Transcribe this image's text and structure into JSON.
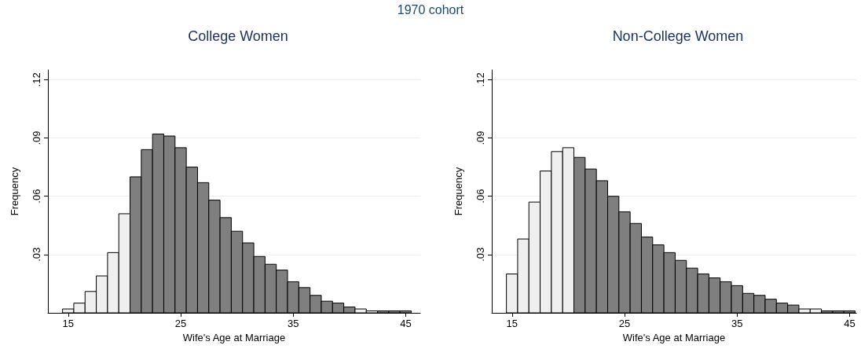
{
  "chart_data": [
    {
      "type": "histogram",
      "title": "College Women",
      "xlabel": "Wife's Age at Marriage",
      "ylabel": "Frequency",
      "annotations": [
        "1970 cohort"
      ],
      "bins": [
        14.5,
        15.5,
        16.5,
        17.5,
        18.5,
        19.5,
        20.5,
        21.5,
        22.5,
        23.5,
        24.5,
        25.5,
        26.5,
        27.5,
        28.5,
        29.5,
        30.5,
        31.5,
        32.5,
        33.5,
        34.5,
        35.5,
        36.5,
        37.5,
        38.5,
        39.5,
        40.5,
        41.5,
        42.5,
        43.5,
        44.5,
        45.5
      ],
      "values": [
        0.002,
        0.005,
        0.011,
        0.019,
        0.031,
        0.051,
        0.07,
        0.084,
        0.092,
        0.091,
        0.085,
        0.075,
        0.067,
        0.058,
        0.049,
        0.042,
        0.036,
        0.029,
        0.025,
        0.022,
        0.016,
        0.013,
        0.009,
        0.006,
        0.005,
        0.003,
        0.002,
        0.001,
        0.001,
        0.001,
        0.001
      ],
      "colors": [
        "#efefef",
        "#efefef",
        "#efefef",
        "#efefef",
        "#efefef",
        "#efefef",
        "#7f7f7f",
        "#7f7f7f",
        "#7f7f7f",
        "#7f7f7f",
        "#7f7f7f",
        "#7f7f7f",
        "#7f7f7f",
        "#7f7f7f",
        "#7f7f7f",
        "#7f7f7f",
        "#7f7f7f",
        "#7f7f7f",
        "#7f7f7f",
        "#7f7f7f",
        "#7f7f7f",
        "#7f7f7f",
        "#7f7f7f",
        "#7f7f7f",
        "#7f7f7f",
        "#7f7f7f",
        "#efefef",
        "#efefef",
        "#7f7f7f",
        "#7f7f7f",
        "#7f7f7f"
      ],
      "xlim": [
        13.2,
        46.3
      ],
      "ylim": [
        0,
        0.125
      ],
      "xticks": [
        15,
        25,
        35,
        45
      ],
      "yticks": [
        {
          "value": 0.03,
          "label": ".03"
        },
        {
          "value": 0.06,
          "label": ".06"
        },
        {
          "value": 0.09,
          "label": ".09"
        },
        {
          "value": 0.12,
          "label": ".12"
        }
      ],
      "grid": "y"
    },
    {
      "type": "histogram",
      "title": "Non-College Women",
      "xlabel": "Wife's Age at Marriage",
      "ylabel": "Frequency",
      "bins": [
        14.5,
        15.5,
        16.5,
        17.5,
        18.5,
        19.5,
        20.5,
        21.5,
        22.5,
        23.5,
        24.5,
        25.5,
        26.5,
        27.5,
        28.5,
        29.5,
        30.5,
        31.5,
        32.5,
        33.5,
        34.5,
        35.5,
        36.5,
        37.5,
        38.5,
        39.5,
        40.5,
        41.5,
        42.5,
        43.5,
        44.5,
        45.5
      ],
      "values": [
        0.02,
        0.038,
        0.057,
        0.073,
        0.083,
        0.085,
        0.08,
        0.074,
        0.068,
        0.06,
        0.052,
        0.046,
        0.039,
        0.035,
        0.031,
        0.027,
        0.023,
        0.02,
        0.018,
        0.016,
        0.014,
        0.01,
        0.009,
        0.007,
        0.005,
        0.004,
        0.002,
        0.002,
        0.001,
        0.001,
        0.001
      ],
      "colors": [
        "#efefef",
        "#efefef",
        "#efefef",
        "#efefef",
        "#efefef",
        "#efefef",
        "#7f7f7f",
        "#7f7f7f",
        "#7f7f7f",
        "#7f7f7f",
        "#7f7f7f",
        "#7f7f7f",
        "#7f7f7f",
        "#7f7f7f",
        "#7f7f7f",
        "#7f7f7f",
        "#7f7f7f",
        "#7f7f7f",
        "#7f7f7f",
        "#7f7f7f",
        "#7f7f7f",
        "#7f7f7f",
        "#7f7f7f",
        "#7f7f7f",
        "#7f7f7f",
        "#7f7f7f",
        "#efefef",
        "#efefef",
        "#7f7f7f",
        "#7f7f7f",
        "#7f7f7f"
      ],
      "xlim": [
        13.2,
        45.6
      ],
      "ylim": [
        0,
        0.125
      ],
      "xticks": [
        15,
        25,
        35,
        45
      ],
      "yticks": [
        {
          "value": 0.03,
          "label": ".03"
        },
        {
          "value": 0.06,
          "label": ".06"
        },
        {
          "value": 0.09,
          "label": ".09"
        },
        {
          "value": 0.12,
          "label": ".12"
        }
      ],
      "grid": "y"
    }
  ]
}
